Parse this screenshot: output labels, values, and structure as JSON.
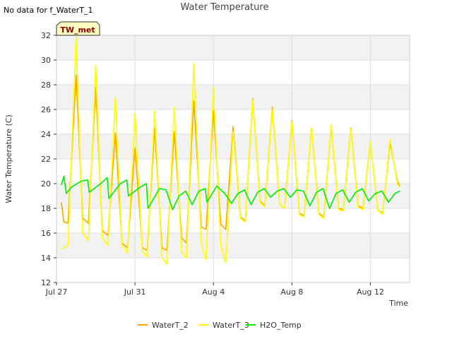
{
  "no_data_note": "No data for f_WaterT_1",
  "station_badge": "TW_met",
  "chart_data": {
    "type": "line",
    "title": "Water Temperature",
    "xlabel": "Time",
    "ylabel": "Water Temperature (C)",
    "ylim": [
      12,
      32
    ],
    "yticks": [
      12,
      14,
      16,
      18,
      20,
      22,
      24,
      26,
      28,
      30,
      32
    ],
    "xlim": [
      "2023-07-27",
      "2023-08-14"
    ],
    "xticks": [
      {
        "date": "2023-07-27",
        "label": "Jul 27"
      },
      {
        "date": "2023-07-31",
        "label": "Jul 31"
      },
      {
        "date": "2023-08-04",
        "label": "Aug 4"
      },
      {
        "date": "2023-08-08",
        "label": "Aug 8"
      },
      {
        "date": "2023-08-12",
        "label": "Aug 12"
      }
    ],
    "grid": true,
    "legend_position": "bottom",
    "series": [
      {
        "name": "WaterT_2",
        "color": "#ffa500",
        "x": [
          "2023-07-27 06:00",
          "2023-07-27 09:00",
          "2023-07-27 14:00",
          "2023-07-28 00:00",
          "2023-07-28 08:00",
          "2023-07-28 15:00",
          "2023-07-29 00:00",
          "2023-07-29 08:00",
          "2023-07-29 15:00",
          "2023-07-30 00:00",
          "2023-07-30 08:00",
          "2023-07-30 15:00",
          "2023-07-31 00:00",
          "2023-07-31 09:00",
          "2023-07-31 15:00",
          "2023-08-01 00:00",
          "2023-08-01 09:00",
          "2023-08-01 15:00",
          "2023-08-02 00:00",
          "2023-08-02 09:00",
          "2023-08-02 15:00",
          "2023-08-03 00:00",
          "2023-08-03 09:00",
          "2023-08-03 15:00",
          "2023-08-04 00:00",
          "2023-08-04 09:00",
          "2023-08-04 15:00",
          "2023-08-05 00:00",
          "2023-08-05 09:00",
          "2023-08-05 15:00",
          "2023-08-06 00:00",
          "2023-08-06 09:00",
          "2023-08-06 15:00",
          "2023-08-07 00:00",
          "2023-08-07 09:00",
          "2023-08-07 15:00",
          "2023-08-08 00:00",
          "2023-08-08 09:00",
          "2023-08-08 15:00",
          "2023-08-09 00:00",
          "2023-08-09 09:00",
          "2023-08-09 15:00",
          "2023-08-10 00:00",
          "2023-08-10 09:00",
          "2023-08-10 15:00",
          "2023-08-11 00:00",
          "2023-08-11 09:00",
          "2023-08-11 15:00",
          "2023-08-12 00:00",
          "2023-08-12 09:00",
          "2023-08-12 15:00",
          "2023-08-13 00:00",
          "2023-08-13 09:00",
          "2023-08-13 12:00"
        ],
        "y": [
          18.5,
          16.9,
          16.8,
          28.8,
          17.2,
          16.8,
          27.8,
          16.2,
          15.8,
          24.1,
          15.2,
          14.8,
          22.9,
          14.8,
          14.6,
          24.5,
          14.8,
          14.6,
          24.2,
          15.6,
          15.2,
          26.7,
          16.5,
          16.3,
          25.9,
          16.7,
          16.3,
          24.6,
          17.3,
          17.0,
          26.9,
          18.6,
          18.2,
          26.2,
          18.3,
          18.0,
          25.1,
          17.6,
          17.4,
          24.5,
          17.6,
          17.3,
          24.7,
          18.0,
          17.9,
          24.5,
          18.2,
          18.0,
          23.4,
          17.9,
          17.6,
          23.3,
          20.2,
          19.8
        ]
      },
      {
        "name": "WaterT_3",
        "color": "#ffff00",
        "x": [
          "2023-07-27 06:00",
          "2023-07-27 09:00",
          "2023-07-27 14:00",
          "2023-07-28 00:00",
          "2023-07-28 08:00",
          "2023-07-28 15:00",
          "2023-07-29 00:00",
          "2023-07-29 08:00",
          "2023-07-29 15:00",
          "2023-07-30 00:00",
          "2023-07-30 08:00",
          "2023-07-30 15:00",
          "2023-07-31 00:00",
          "2023-07-31 09:00",
          "2023-07-31 15:00",
          "2023-08-01 00:00",
          "2023-08-01 09:00",
          "2023-08-01 15:00",
          "2023-08-02 00:00",
          "2023-08-02 09:00",
          "2023-08-02 15:00",
          "2023-08-03 00:00",
          "2023-08-03 09:00",
          "2023-08-03 15:00",
          "2023-08-04 00:00",
          "2023-08-04 09:00",
          "2023-08-04 15:00",
          "2023-08-05 00:00",
          "2023-08-05 09:00",
          "2023-08-05 15:00",
          "2023-08-06 00:00",
          "2023-08-06 09:00",
          "2023-08-06 15:00",
          "2023-08-07 00:00",
          "2023-08-07 09:00",
          "2023-08-07 15:00",
          "2023-08-08 00:00",
          "2023-08-08 09:00",
          "2023-08-08 15:00",
          "2023-08-09 00:00",
          "2023-08-09 09:00",
          "2023-08-09 15:00",
          "2023-08-10 00:00",
          "2023-08-10 09:00",
          "2023-08-10 15:00",
          "2023-08-11 00:00",
          "2023-08-11 09:00",
          "2023-08-11 15:00",
          "2023-08-12 00:00",
          "2023-08-12 09:00",
          "2023-08-12 15:00",
          "2023-08-13 00:00",
          "2023-08-13 09:00",
          "2023-08-13 12:00"
        ],
        "y": [
          14.7,
          14.8,
          15.0,
          31.9,
          16.0,
          15.4,
          29.6,
          15.6,
          15.0,
          27.0,
          15.0,
          14.4,
          25.7,
          14.5,
          14.1,
          25.9,
          14.0,
          13.5,
          26.2,
          14.5,
          14.0,
          29.7,
          15.2,
          13.8,
          27.8,
          15.0,
          13.6,
          24.2,
          17.2,
          16.9,
          26.8,
          18.5,
          18.1,
          26.0,
          18.3,
          18.0,
          25.0,
          17.5,
          17.3,
          24.5,
          17.5,
          17.2,
          24.8,
          17.9,
          17.8,
          24.4,
          18.1,
          17.9,
          23.4,
          17.9,
          17.5,
          23.6,
          20.0,
          19.7
        ]
      },
      {
        "name": "H2O_Temp",
        "color": "#00ee00",
        "x": [
          "2023-07-27 06:00",
          "2023-07-27 09:00",
          "2023-07-27 12:00",
          "2023-07-27 18:00",
          "2023-07-28 06:00",
          "2023-07-28 14:00",
          "2023-07-28 16:00",
          "2023-07-29 06:00",
          "2023-07-29 14:00",
          "2023-07-29 16:00",
          "2023-07-30 06:00",
          "2023-07-30 14:00",
          "2023-07-30 16:00",
          "2023-07-31 06:00",
          "2023-07-31 14:00",
          "2023-07-31 16:00",
          "2023-08-01 06:00",
          "2023-08-01 14:00",
          "2023-08-01 22:00",
          "2023-08-02 06:00",
          "2023-08-02 14:00",
          "2023-08-02 22:00",
          "2023-08-03 06:00",
          "2023-08-03 14:00",
          "2023-08-03 16:00",
          "2023-08-04 04:00",
          "2023-08-04 14:00",
          "2023-08-04 22:00",
          "2023-08-05 06:00",
          "2023-08-05 14:00",
          "2023-08-05 22:00",
          "2023-08-06 06:00",
          "2023-08-06 14:00",
          "2023-08-06 22:00",
          "2023-08-07 06:00",
          "2023-08-07 14:00",
          "2023-08-07 22:00",
          "2023-08-08 06:00",
          "2023-08-08 14:00",
          "2023-08-08 22:00",
          "2023-08-09 06:00",
          "2023-08-09 14:00",
          "2023-08-09 22:00",
          "2023-08-10 06:00",
          "2023-08-10 14:00",
          "2023-08-10 22:00",
          "2023-08-11 06:00",
          "2023-08-11 14:00",
          "2023-08-11 22:00",
          "2023-08-12 06:00",
          "2023-08-12 14:00",
          "2023-08-12 22:00",
          "2023-08-13 06:00",
          "2023-08-13 12:00"
        ],
        "y": [
          19.9,
          20.6,
          19.2,
          19.7,
          20.2,
          20.3,
          19.3,
          20.0,
          20.5,
          18.8,
          20.0,
          20.3,
          19.0,
          19.7,
          20.0,
          18.0,
          19.6,
          19.5,
          17.9,
          19.0,
          19.4,
          18.3,
          19.4,
          19.6,
          18.5,
          19.8,
          19.2,
          18.4,
          19.2,
          19.5,
          18.3,
          19.3,
          19.6,
          18.9,
          19.4,
          19.6,
          18.9,
          19.5,
          19.4,
          18.2,
          19.3,
          19.6,
          18.0,
          19.2,
          19.5,
          18.5,
          19.3,
          19.6,
          18.6,
          19.2,
          19.4,
          18.5,
          19.2,
          19.4
        ]
      }
    ]
  }
}
